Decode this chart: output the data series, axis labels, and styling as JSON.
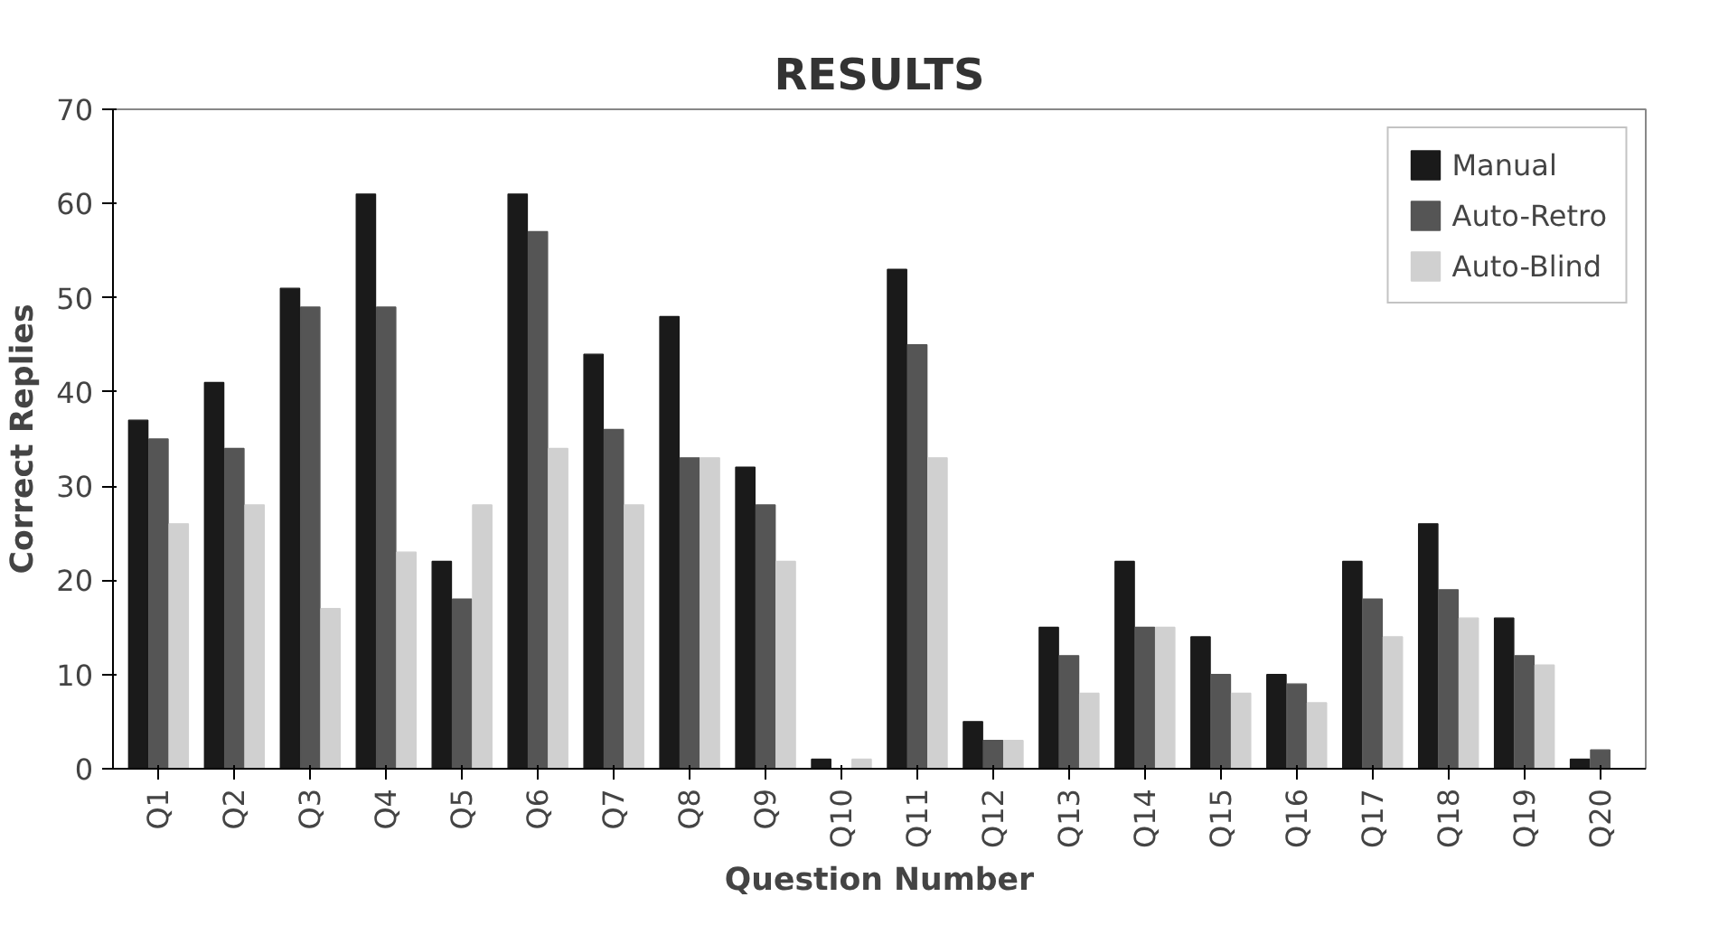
{
  "chart_data": {
    "type": "bar",
    "title": "RESULTS",
    "xlabel": "Question Number",
    "ylabel": "Correct Replies",
    "categories": [
      "Q1",
      "Q2",
      "Q3",
      "Q4",
      "Q5",
      "Q6",
      "Q7",
      "Q8",
      "Q9",
      "Q10",
      "Q11",
      "Q12",
      "Q13",
      "Q14",
      "Q15",
      "Q16",
      "Q17",
      "Q18",
      "Q19",
      "Q20"
    ],
    "series": [
      {
        "name": "Manual",
        "color": "#1a1a1a",
        "values": [
          37,
          41,
          51,
          61,
          22,
          61,
          44,
          48,
          32,
          1,
          53,
          5,
          15,
          22,
          14,
          10,
          22,
          26,
          16,
          1
        ]
      },
      {
        "name": "Auto-Retro",
        "color": "#555555",
        "values": [
          35,
          34,
          49,
          49,
          18,
          57,
          36,
          33,
          28,
          0,
          45,
          3,
          12,
          15,
          10,
          9,
          18,
          19,
          12,
          2
        ]
      },
      {
        "name": "Auto-Blind",
        "color": "#d0d0d0",
        "values": [
          26,
          28,
          17,
          23,
          28,
          34,
          28,
          33,
          22,
          1,
          33,
          3,
          8,
          15,
          8,
          7,
          14,
          16,
          11,
          0
        ]
      }
    ],
    "ylim": [
      0,
      70
    ],
    "yticks": [
      0,
      10,
      20,
      30,
      40,
      50,
      60,
      70
    ],
    "grid": false,
    "legend": "top right"
  }
}
